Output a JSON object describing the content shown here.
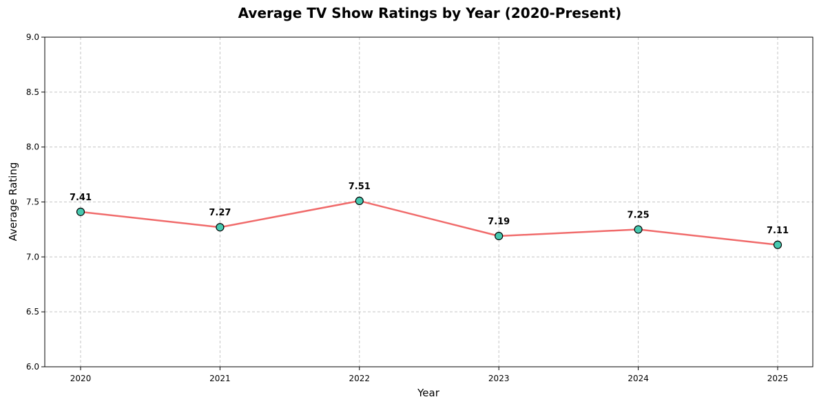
{
  "chart_data": {
    "type": "line",
    "title": "Average TV Show Ratings by Year (2020-Present)",
    "xlabel": "Year",
    "ylabel": "Average Rating",
    "x": [
      "2020",
      "2021",
      "2022",
      "2023",
      "2024",
      "2025"
    ],
    "series": [
      {
        "values": [
          7.41,
          7.27,
          7.51,
          7.19,
          7.25,
          7.11
        ],
        "data_labels": [
          "7.41",
          "7.27",
          "7.51",
          "7.19",
          "7.25",
          "7.11"
        ]
      }
    ],
    "ylim": [
      6.0,
      9.0
    ],
    "yticks": [
      6.0,
      6.5,
      7.0,
      7.5,
      8.0,
      8.5,
      9.0
    ],
    "ytick_labels": [
      "6.0",
      "6.5",
      "7.0",
      "7.5",
      "8.0",
      "8.5",
      "9.0"
    ],
    "grid": true,
    "legend": "none",
    "colors": {
      "line": "#f06a6a",
      "marker_fill": "#47c9b0",
      "marker_edge": "#000000"
    }
  }
}
